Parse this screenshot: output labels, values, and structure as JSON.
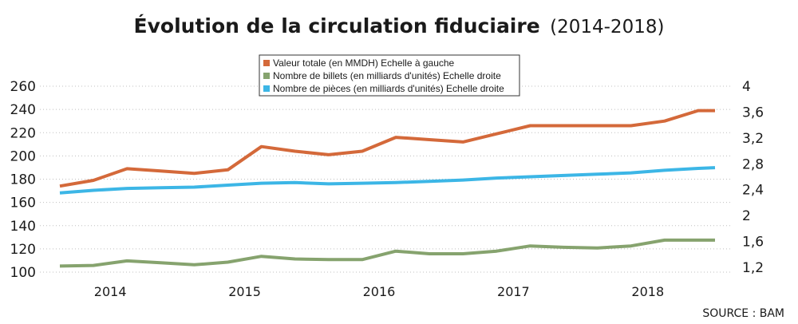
{
  "chart_data": {
    "type": "line",
    "title_main": "Évolution de la circulation fiduciaire",
    "title_sub": "(2014-2018)",
    "source": "SOURCE : BAM",
    "categories": [
      "2014",
      "2015",
      "2016",
      "2017",
      "2018"
    ],
    "left_axis": {
      "ticks": [
        "100",
        "120",
        "140",
        "160",
        "180",
        "200",
        "220",
        "240",
        "260"
      ],
      "ylim": [
        100,
        260
      ]
    },
    "right_axis": {
      "ticks": [
        "1,2",
        "1,6",
        "2",
        "2,4",
        "2,8",
        "3,2",
        "3,6",
        "4"
      ],
      "ylim": [
        1.2,
        4
      ]
    },
    "grid": true,
    "legend_position": "top-center",
    "x_data_range": [
      2013.625,
      2018.5
    ],
    "series": [
      {
        "name": "Valeur totale (en MMDH) Echelle à gauche",
        "axis": "left",
        "color": "#d4693a",
        "x": [
          2013.625,
          2013.875,
          2014.125,
          2014.375,
          2014.625,
          2014.875,
          2015.125,
          2015.375,
          2015.625,
          2015.875,
          2016.125,
          2016.375,
          2016.625,
          2016.875,
          2017.125,
          2017.375,
          2017.625,
          2017.875,
          2018.125,
          2018.375,
          2018.5
        ],
        "values": [
          174,
          179,
          189,
          187,
          185,
          188,
          208,
          204,
          201,
          204,
          216,
          214,
          212,
          219,
          226,
          226,
          226,
          226,
          230,
          239,
          239
        ]
      },
      {
        "name": "Nombre de billets (en milliards d'unités) Echelle droite",
        "axis": "right",
        "color": "#86a36e",
        "x": [
          2013.625,
          2013.875,
          2014.125,
          2014.375,
          2014.625,
          2014.875,
          2015.125,
          2015.375,
          2015.625,
          2015.875,
          2016.125,
          2016.375,
          2016.625,
          2016.875,
          2017.125,
          2017.375,
          2017.625,
          2017.875,
          2018.125,
          2018.375,
          2018.5
        ],
        "values": [
          1.22,
          1.23,
          1.3,
          1.27,
          1.24,
          1.28,
          1.37,
          1.33,
          1.32,
          1.32,
          1.45,
          1.41,
          1.41,
          1.45,
          1.53,
          1.51,
          1.5,
          1.53,
          1.62,
          1.62,
          1.62
        ]
      },
      {
        "name": "Nombre de pièces (en milliards d'unités) Echelle droite",
        "axis": "right",
        "color": "#3cb6e6",
        "x": [
          2013.625,
          2013.875,
          2014.125,
          2014.375,
          2014.625,
          2014.875,
          2015.125,
          2015.375,
          2015.625,
          2015.875,
          2016.125,
          2016.375,
          2016.625,
          2016.875,
          2017.125,
          2017.375,
          2017.625,
          2017.875,
          2018.125,
          2018.375,
          2018.5
        ],
        "values": [
          2.35,
          2.39,
          2.42,
          2.43,
          2.44,
          2.47,
          2.5,
          2.51,
          2.49,
          2.5,
          2.51,
          2.53,
          2.55,
          2.58,
          2.6,
          2.62,
          2.64,
          2.66,
          2.7,
          2.73,
          2.74
        ]
      }
    ]
  }
}
